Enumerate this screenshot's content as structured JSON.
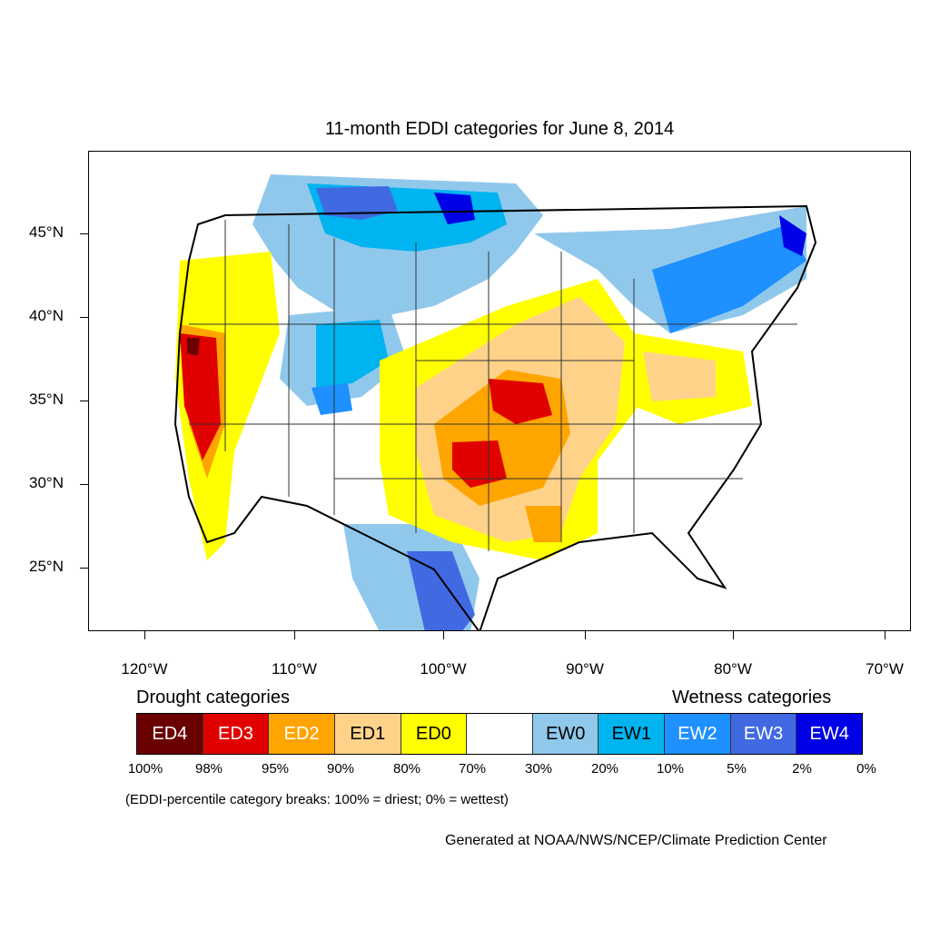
{
  "title": "11-month EDDI categories for June 8, 2014",
  "lat_labels": [
    "45°N",
    "40°N",
    "35°N",
    "30°N",
    "25°N"
  ],
  "lon_labels": [
    "120°W",
    "110°W",
    "100°W",
    "90°W",
    "80°W",
    "70°W"
  ],
  "legend": {
    "drought_heading": "Drought categories",
    "wetness_heading": "Wetness categories",
    "categories": [
      {
        "label": "ED4",
        "color": "#6b0000",
        "text_color": "#ffffff"
      },
      {
        "label": "ED3",
        "color": "#e00000",
        "text_color": "#ffffff"
      },
      {
        "label": "ED2",
        "color": "#ffa500",
        "text_color": "#ffffff"
      },
      {
        "label": "ED1",
        "color": "#ffd28a",
        "text_color": "#000000"
      },
      {
        "label": "ED0",
        "color": "#ffff00",
        "text_color": "#000000"
      },
      {
        "label": "",
        "color": "#ffffff",
        "text_color": "#000000"
      },
      {
        "label": "EW0",
        "color": "#90c8ec",
        "text_color": "#000000"
      },
      {
        "label": "EW1",
        "color": "#00b4f0",
        "text_color": "#000000"
      },
      {
        "label": "EW2",
        "color": "#1e90ff",
        "text_color": "#ffffff"
      },
      {
        "label": "EW3",
        "color": "#4169e1",
        "text_color": "#ffffff"
      },
      {
        "label": "EW4",
        "color": "#0000e6",
        "text_color": "#ffffff"
      }
    ],
    "percent_breaks": [
      "100%",
      "98%",
      "95%",
      "90%",
      "80%",
      "70%",
      "30%",
      "20%",
      "10%",
      "5%",
      "2%",
      "0%"
    ]
  },
  "breaks_note": "(EDDI-percentile category breaks: 100% = driest; 0% = wettest)",
  "credit": "Generated at NOAA/NWS/NCEP/Climate Prediction Center"
}
